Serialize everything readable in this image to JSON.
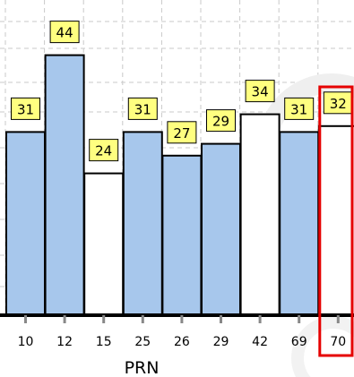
{
  "chart_data": {
    "type": "bar",
    "title": "",
    "xlabel": "PRN",
    "ylabel": "",
    "categories": [
      "10",
      "12",
      "15",
      "25",
      "26",
      "29",
      "42",
      "69",
      "70"
    ],
    "values": [
      31,
      44,
      24,
      31,
      27,
      29,
      34,
      31,
      32
    ],
    "bar_colors": [
      "#a7c7ec",
      "#a7c7ec",
      "#ffffff",
      "#a7c7ec",
      "#a7c7ec",
      "#a7c7ec",
      "#ffffff",
      "#a7c7ec",
      "#ffffff"
    ],
    "ylim": [
      0,
      54
    ],
    "grid": true,
    "highlighted_category": "70",
    "data_label_style": {
      "fill": "#ffff80",
      "border": "#000000"
    },
    "highlight_color": "#e60000"
  }
}
